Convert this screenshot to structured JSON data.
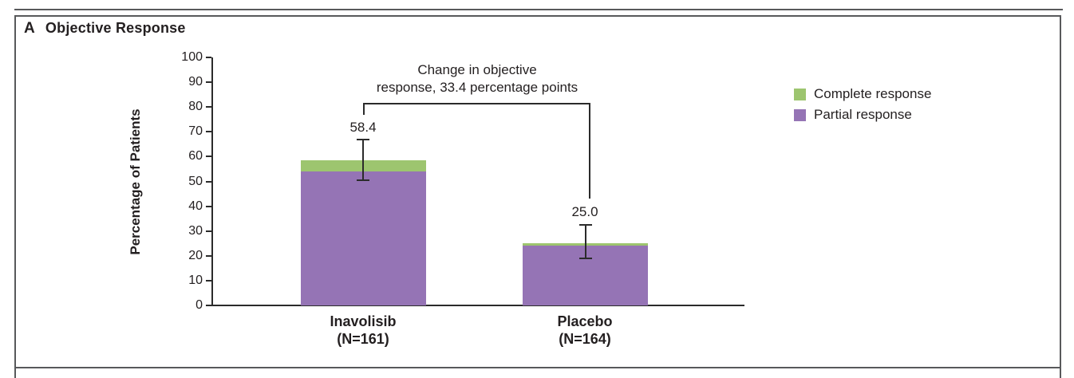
{
  "panel": {
    "letter": "A",
    "title": "Objective Response"
  },
  "colors": {
    "frame": "#58595b",
    "axis": "#2b2b2b",
    "text": "#231f20",
    "complete_response": "#9dc56f",
    "partial_response": "#9574b5"
  },
  "chart_data": {
    "type": "bar",
    "stacked": true,
    "title": "Objective Response",
    "ylabel": "Percentage of Patients",
    "xlabel": "",
    "ylim": [
      0,
      100
    ],
    "ytick_step": 10,
    "grid": false,
    "legend_position": "right",
    "categories": [
      {
        "label": "Inavolisib",
        "sublabel": "(N=161)",
        "total": 58.4,
        "total_label": "58.4",
        "ci_low": 50.5,
        "ci_high": 67.0
      },
      {
        "label": "Placebo",
        "sublabel": "(N=164)",
        "total": 25.0,
        "total_label": "25.0",
        "ci_low": 19.0,
        "ci_high": 32.5
      }
    ],
    "series": [
      {
        "name": "Complete response",
        "color": "#9dc56f",
        "values": [
          4.4,
          1.0
        ]
      },
      {
        "name": "Partial response",
        "color": "#9574b5",
        "values": [
          54.0,
          24.0
        ]
      }
    ],
    "annotation": {
      "line1": "Change in objective",
      "line2": "response, 33.4 percentage points"
    }
  }
}
